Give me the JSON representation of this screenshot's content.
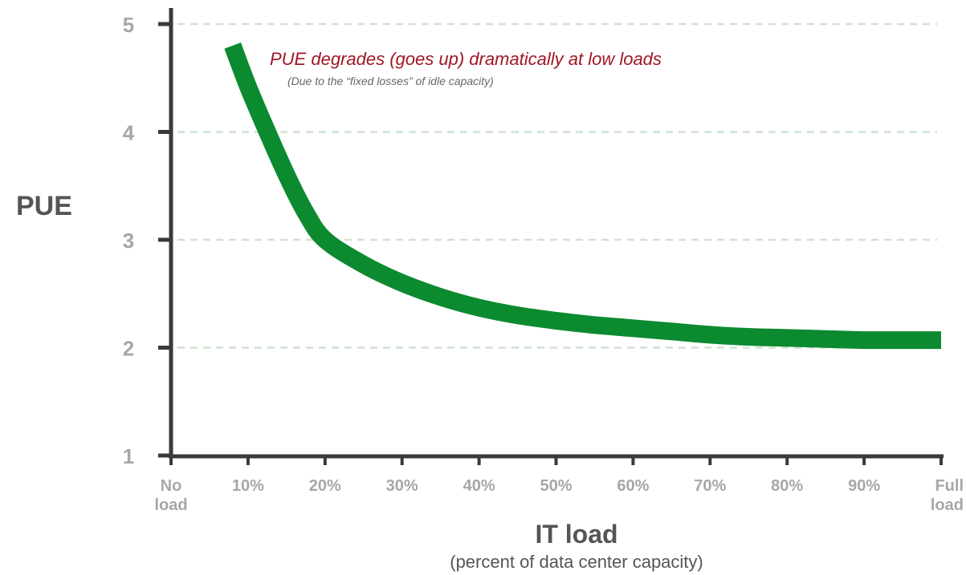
{
  "chart_data": {
    "type": "line",
    "ylabel": "PUE",
    "xlabel": "IT load",
    "xlabel_sub": "(percent of data center capacity)",
    "ylim": [
      1,
      5
    ],
    "yticks": [
      "1",
      "2",
      "3",
      "4",
      "5"
    ],
    "xticks": [
      [
        "No",
        "load"
      ],
      [
        "10%"
      ],
      [
        "20%"
      ],
      [
        "30%"
      ],
      [
        "40%"
      ],
      [
        "50%"
      ],
      [
        "60%"
      ],
      [
        "70%"
      ],
      [
        "80%"
      ],
      [
        "90%"
      ],
      [
        "Full",
        "load"
      ]
    ],
    "xlim": [
      0,
      100
    ],
    "grid": "horizontal dashed",
    "annotation": {
      "text": "PUE degrades (goes up) dramatically at low loads",
      "subtext": "(Due to the “fixed losses” of idle capacity)"
    },
    "series": [
      {
        "color": "#0c8a2f",
        "x": [
          8,
          10,
          12.5,
          15,
          17.5,
          20,
          25,
          30,
          35,
          40,
          45,
          50,
          55,
          60,
          65,
          70,
          75,
          80,
          85,
          90,
          95,
          100
        ],
        "y": [
          4.8,
          4.42,
          4.0,
          3.6,
          3.25,
          3.0,
          2.77,
          2.6,
          2.47,
          2.37,
          2.3,
          2.25,
          2.21,
          2.18,
          2.15,
          2.12,
          2.1,
          2.09,
          2.08,
          2.07,
          2.07,
          2.07
        ]
      }
    ],
    "colors": {
      "axis": "#3a3a3a",
      "grid": "#cfe3cf",
      "tick_text": "#a7a7a7",
      "title_text": "#555555",
      "annotation_text": "#a01624",
      "annotation_subtext": "#666666"
    }
  }
}
